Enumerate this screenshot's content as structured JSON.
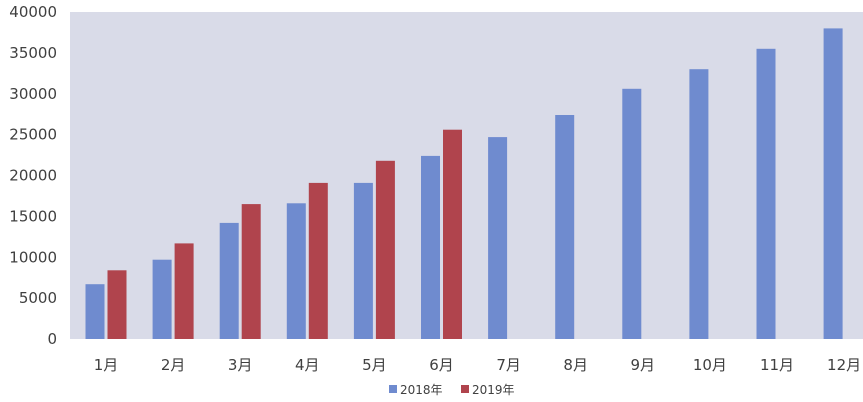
{
  "chart_data": {
    "type": "bar",
    "categories": [
      "1月",
      "2月",
      "3月",
      "4月",
      "5月",
      "6月",
      "7月",
      "8月",
      "9月",
      "10月",
      "11月",
      "12月"
    ],
    "series": [
      {
        "name": "2018年",
        "color": "#6f8bcf",
        "values": [
          6700,
          9700,
          14200,
          16600,
          19100,
          22400,
          24700,
          27400,
          30600,
          33000,
          35500,
          38000
        ]
      },
      {
        "name": "2019年",
        "color": "#b0444d",
        "values": [
          8400,
          11700,
          16500,
          19100,
          21800,
          25600,
          null,
          null,
          null,
          null,
          null,
          null
        ]
      }
    ],
    "ylim": [
      0,
      40000
    ],
    "yticks": [
      "0",
      "5000",
      "10000",
      "15000",
      "20000",
      "25000",
      "30000",
      "35000",
      "40000"
    ],
    "plot_background": "#d9dbe8",
    "grid": false,
    "legend_position": "bottom"
  }
}
